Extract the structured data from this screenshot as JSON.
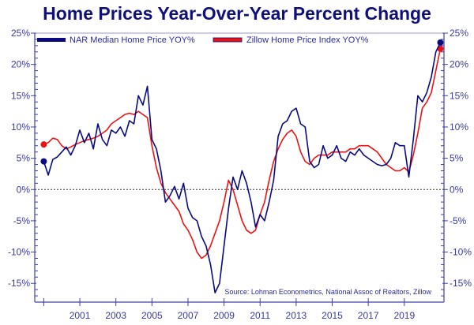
{
  "chart_data": {
    "type": "line",
    "title": "Home Prices Year-Over-Year Percent Change",
    "xlabel": "",
    "ylabel": "",
    "xlim": [
      1998.5,
      2021.2
    ],
    "ylim": [
      -18,
      25
    ],
    "x_ticks": [
      2001,
      2003,
      2005,
      2007,
      2009,
      2011,
      2013,
      2015,
      2017,
      2019
    ],
    "x_minor_ticks": [
      1999
    ],
    "y_ticks": [
      25,
      20,
      15,
      10,
      5,
      0,
      -5,
      -10,
      -15
    ],
    "y_tick_labels": [
      "25%",
      "20%",
      "15%",
      "10%",
      "5%",
      "0%",
      "-5%",
      "-10%",
      "-15%"
    ],
    "y_axes": [
      "left",
      "right"
    ],
    "zero_line": "dashed",
    "grid": false,
    "legend": {
      "position": "top-left",
      "orientation": "horizontal"
    },
    "annotation": "Source: Lohman Econometrics, National Assoc of Realtors, Zillow",
    "series": [
      {
        "name": "NAR Median Home Price YOY%",
        "color": "#0a0a80",
        "x": [
          1999.0,
          1999.25,
          1999.5,
          1999.75,
          2000.0,
          2000.25,
          2000.5,
          2000.75,
          2001.0,
          2001.25,
          2001.5,
          2001.75,
          2002.0,
          2002.25,
          2002.5,
          2002.75,
          2003.0,
          2003.25,
          2003.5,
          2003.75,
          2004.0,
          2004.25,
          2004.5,
          2004.75,
          2005.0,
          2005.25,
          2005.5,
          2005.75,
          2006.0,
          2006.25,
          2006.5,
          2006.75,
          2007.0,
          2007.25,
          2007.5,
          2007.75,
          2008.0,
          2008.25,
          2008.5,
          2008.75,
          2009.0,
          2009.25,
          2009.5,
          2009.75,
          2010.0,
          2010.25,
          2010.5,
          2010.75,
          2011.0,
          2011.25,
          2011.5,
          2011.75,
          2012.0,
          2012.25,
          2012.5,
          2012.75,
          2013.0,
          2013.25,
          2013.5,
          2013.75,
          2014.0,
          2014.25,
          2014.5,
          2014.75,
          2015.0,
          2015.25,
          2015.5,
          2015.75,
          2016.0,
          2016.25,
          2016.5,
          2016.75,
          2017.0,
          2017.25,
          2017.5,
          2017.75,
          2018.0,
          2018.25,
          2018.5,
          2018.75,
          2019.0,
          2019.25,
          2019.5,
          2019.75,
          2020.0,
          2020.25,
          2020.5,
          2020.75,
          2021.0
        ],
        "values": [
          4.5,
          2.3,
          4.8,
          5.2,
          6.0,
          6.8,
          5.5,
          7.0,
          9.5,
          7.5,
          9.0,
          6.5,
          10.5,
          8.0,
          7.0,
          9.5,
          9.0,
          10.0,
          8.5,
          11.0,
          10.5,
          15.0,
          13.5,
          16.5,
          8.0,
          6.5,
          3.0,
          -2.0,
          -1.0,
          0.5,
          -1.5,
          1.0,
          -3.0,
          -4.5,
          -5.0,
          -7.5,
          -9.0,
          -12.0,
          -16.5,
          -15.0,
          -9.0,
          -3.0,
          2.0,
          0.0,
          3.0,
          1.0,
          -2.0,
          -6.0,
          -4.0,
          -5.0,
          -2.0,
          1.5,
          8.5,
          10.5,
          11.0,
          12.5,
          13.0,
          10.5,
          10.0,
          4.5,
          3.5,
          4.0,
          7.0,
          5.0,
          5.5,
          7.0,
          5.0,
          4.5,
          6.0,
          5.5,
          6.5,
          5.5,
          5.0,
          4.5,
          4.0,
          3.8,
          4.0,
          5.0,
          7.5,
          7.0,
          7.0,
          2.0,
          8.0,
          15.0,
          14.0,
          15.5,
          18.0,
          22.0,
          23.5
        ]
      },
      {
        "name": "Zillow Home Price Index YOY%",
        "color": "#ee1111",
        "x": [
          1999.0,
          1999.25,
          1999.5,
          1999.75,
          2000.0,
          2000.25,
          2000.5,
          2000.75,
          2001.0,
          2001.25,
          2001.5,
          2001.75,
          2002.0,
          2002.25,
          2002.5,
          2002.75,
          2003.0,
          2003.25,
          2003.5,
          2003.75,
          2004.0,
          2004.25,
          2004.5,
          2004.75,
          2005.0,
          2005.25,
          2005.5,
          2005.75,
          2006.0,
          2006.25,
          2006.5,
          2006.75,
          2007.0,
          2007.25,
          2007.5,
          2007.75,
          2008.0,
          2008.25,
          2008.5,
          2008.75,
          2009.0,
          2009.25,
          2009.5,
          2009.75,
          2010.0,
          2010.25,
          2010.5,
          2010.75,
          2011.0,
          2011.25,
          2011.5,
          2011.75,
          2012.0,
          2012.25,
          2012.5,
          2012.75,
          2013.0,
          2013.25,
          2013.5,
          2013.75,
          2014.0,
          2014.25,
          2014.5,
          2014.75,
          2015.0,
          2015.25,
          2015.5,
          2015.75,
          2016.0,
          2016.25,
          2016.5,
          2016.75,
          2017.0,
          2017.25,
          2017.5,
          2017.75,
          2018.0,
          2018.25,
          2018.5,
          2018.75,
          2019.0,
          2019.25,
          2019.5,
          2019.75,
          2020.0,
          2020.25,
          2020.5,
          2020.75,
          2021.0
        ],
        "values": [
          7.2,
          7.5,
          8.2,
          8.0,
          7.0,
          6.5,
          6.8,
          7.2,
          7.5,
          7.8,
          8.0,
          8.2,
          8.5,
          9.0,
          9.5,
          10.5,
          11.0,
          11.5,
          12.0,
          12.2,
          12.0,
          12.5,
          12.0,
          11.5,
          7.0,
          3.5,
          1.0,
          -0.5,
          -1.5,
          -2.5,
          -3.5,
          -5.5,
          -6.5,
          -8.0,
          -10.0,
          -11.0,
          -10.5,
          -9.0,
          -7.0,
          -5.0,
          -2.0,
          1.5,
          0.0,
          -2.5,
          -5.0,
          -6.5,
          -7.0,
          -6.5,
          -4.0,
          -2.0,
          1.5,
          4.5,
          6.5,
          8.0,
          9.0,
          9.5,
          8.5,
          6.0,
          4.5,
          4.0,
          5.0,
          5.5,
          5.5,
          5.5,
          6.0,
          6.0,
          6.0,
          6.0,
          6.5,
          6.5,
          7.0,
          7.0,
          7.0,
          6.5,
          6.0,
          5.0,
          4.0,
          3.5,
          3.0,
          3.0,
          3.5,
          2.8,
          5.5,
          9.0,
          13.0,
          14.0,
          15.5,
          19.0,
          22.5
        ]
      }
    ]
  }
}
